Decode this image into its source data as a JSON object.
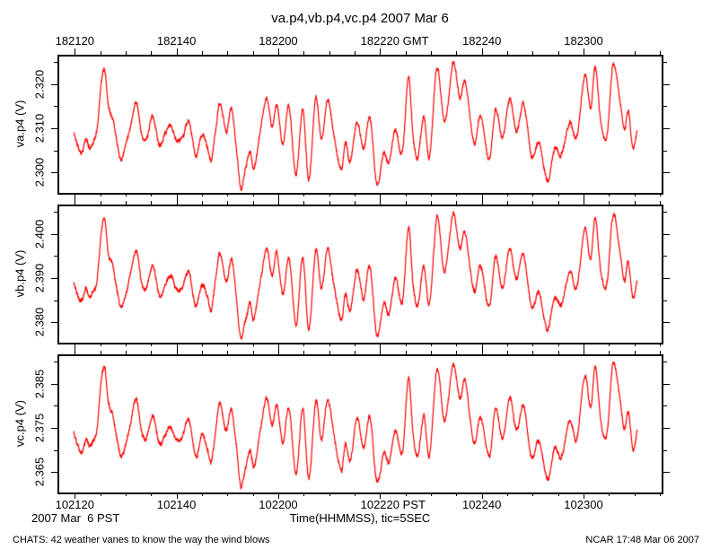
{
  "title": "va.p4,vb.p4,vc.p4 2007 Mar 6",
  "x_axis": {
    "title": "Time(HHMMSS), tic=5SEC",
    "date_label": "2007 Mar  6 PST",
    "minor_tick_sec": 5,
    "major_tick_sec": 20,
    "top_ticks": [
      {
        "label": "182120"
      },
      {
        "label": "182140"
      },
      {
        "label": "182200"
      },
      {
        "label": "182220",
        "suffix": "GMT"
      },
      {
        "label": "182240"
      },
      {
        "label": "182300"
      }
    ],
    "bottom_ticks": [
      {
        "label": "102120"
      },
      {
        "label": "102140"
      },
      {
        "label": "102200"
      },
      {
        "label": "102220",
        "suffix": "PST"
      },
      {
        "label": "102240"
      },
      {
        "label": "102300"
      }
    ]
  },
  "footer": {
    "left": "CHATS: 42 weather vanes to know the way the wind blows",
    "right": "NCAR 17:48 Mar 06 2007"
  },
  "colors": {
    "trace": "#ff0000",
    "axis": "#000000",
    "background": "#ffffff"
  },
  "chart_data": {
    "type": "line",
    "title": "va.p4,vb.p4,vc.p4 2007 Mar 6",
    "xlabel": "Time(HHMMSS), tic=5SEC",
    "x_unit": "seconds after 18:21:20 GMT (= 10:21:20 PST), 2007 Mar 6",
    "xlim_sec": [
      -3.05,
      115.35
    ],
    "grid": false,
    "legend": "none",
    "panels": [
      {
        "name": "va.p4",
        "ylabel": "va.p4 (V)",
        "ylim": [
          2.2958,
          2.3262
        ],
        "ytick_values": [
          2.3,
          2.31,
          2.32
        ],
        "ytick_labels": [
          "2.300",
          "2.310",
          "2.320"
        ],
        "ytick_minor_step": 0.005,
        "offset_volts": 0.0
      },
      {
        "name": "vb.p4",
        "ylabel": "vb.p4 (V)",
        "ylim": [
          2.3758,
          2.4062
        ],
        "ytick_values": [
          2.38,
          2.39,
          2.4
        ],
        "ytick_labels": [
          "2.380",
          "2.390",
          "2.400"
        ],
        "ytick_minor_step": 0.005,
        "offset_volts": 0.08
      },
      {
        "name": "vc.p4",
        "ylabel": "vc.p4 (V)",
        "ylim": [
          2.3608,
          2.3912
        ],
        "ytick_values": [
          2.365,
          2.375,
          2.385
        ],
        "ytick_labels": [
          "2.365",
          "2.375",
          "2.385"
        ],
        "ytick_minor_step": 0.005,
        "offset_volts": 0.065
      }
    ],
    "x_seconds": [
      -0.2,
      1.2,
      2.2,
      2.9,
      3.8,
      4.4,
      5.2,
      5.9,
      6.6,
      7.5,
      8.2,
      9.1,
      10,
      10.9,
      12.1,
      13.2,
      14.1,
      15.3,
      16.7,
      17.8,
      18.8,
      19.9,
      21.1,
      22.4,
      23.8,
      25,
      26.1,
      26.8,
      27.8,
      28.5,
      29.8,
      30.8,
      31.7,
      32.6,
      33.5,
      34.4,
      35.2,
      36.5,
      37.7,
      38.8,
      39.7,
      40.9,
      42.1,
      43.5,
      44.8,
      46,
      47.4,
      48.5,
      49.7,
      50.9,
      52.4,
      53.2,
      54.1,
      55.5,
      56.8,
      58,
      59.4,
      60.8,
      61.7,
      63,
      64.4,
      65.6,
      66.5,
      67.4,
      68.6,
      69.7,
      71.2,
      72.7,
      74.4,
      75.7,
      76.7,
      78.5,
      79.7,
      81.5,
      82.7,
      84.1,
      85.5,
      86.8,
      88.2,
      89.8,
      91.2,
      92.9,
      94.3,
      95.6,
      97.3,
      98.6,
      100.3,
      101.4,
      102.3,
      103.5,
      104.6,
      105.8,
      107.1,
      108,
      108.8,
      109.7,
      110.6
    ],
    "va_p4_volts": [
      2.309,
      2.3045,
      2.3075,
      2.3055,
      2.3075,
      2.31,
      2.3205,
      2.323,
      2.3155,
      2.3125,
      2.308,
      2.3035,
      2.3065,
      2.3105,
      2.316,
      2.3085,
      2.3075,
      2.3125,
      2.306,
      2.3085,
      2.3105,
      2.3075,
      2.308,
      2.3115,
      2.3035,
      2.3085,
      2.3055,
      2.3025,
      2.3105,
      2.3155,
      2.3095,
      2.3145,
      2.3065,
      2.2965,
      2.3005,
      2.3045,
      2.301,
      2.3095,
      2.3165,
      2.3105,
      2.3155,
      2.3065,
      2.3145,
      2.2995,
      2.3145,
      2.2985,
      2.3165,
      2.3075,
      2.3165,
      2.3085,
      2.3005,
      2.3065,
      2.3025,
      2.3115,
      2.3055,
      2.3125,
      2.2975,
      2.3045,
      2.3015,
      2.3095,
      2.3045,
      2.3215,
      2.3085,
      2.3035,
      2.3125,
      2.3035,
      2.3235,
      2.3115,
      2.3245,
      2.3165,
      2.3205,
      2.3065,
      2.3125,
      2.3035,
      2.3145,
      2.3075,
      2.3165,
      2.3095,
      2.3155,
      2.3035,
      2.3065,
      2.2985,
      2.3055,
      2.3035,
      2.3115,
      2.3075,
      2.322,
      2.3145,
      2.3235,
      2.3105,
      2.3085,
      2.3245,
      2.3165,
      2.3095,
      2.3135,
      2.3055,
      2.3095
    ]
  }
}
